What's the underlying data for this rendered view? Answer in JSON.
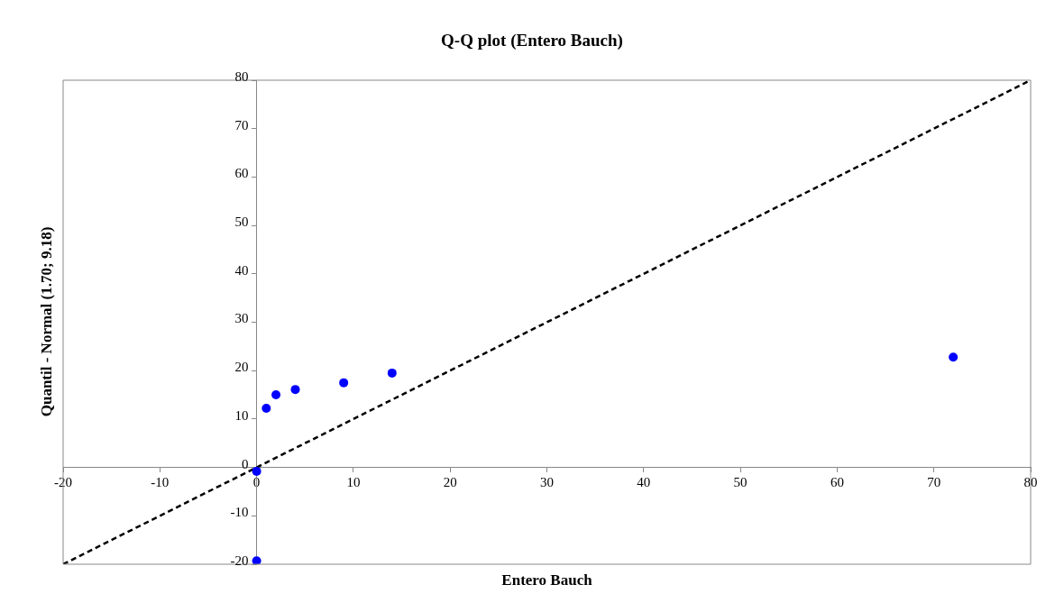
{
  "chart_data": {
    "type": "scatter",
    "title": "Q-Q plot (Entero Bauch)",
    "xlabel": "Entero Bauch",
    "ylabel": "Quantil - Normal (1.70; 9.18)",
    "xlim": [
      -20,
      80
    ],
    "xticks": [
      -20,
      -10,
      0,
      10,
      20,
      30,
      40,
      50,
      60,
      70,
      80
    ],
    "ylim": [
      -20,
      80
    ],
    "yticks": [
      -20,
      -10,
      0,
      10,
      20,
      30,
      40,
      50,
      60,
      70,
      80
    ],
    "grid": false,
    "legend": false,
    "marker": "circle",
    "series": [
      {
        "color": "#0000ff",
        "x": [
          0,
          0,
          1,
          2,
          4,
          9,
          14,
          72
        ],
        "values": [
          -19.3,
          -0.8,
          12.2,
          15,
          16.1,
          17.5,
          19.5,
          22.8
        ]
      },
      {
        "type": "line",
        "color": "#000000",
        "line_style": "dashed",
        "marker": "none",
        "x": [
          -20,
          80
        ],
        "values": [
          -20,
          80
        ]
      }
    ]
  }
}
